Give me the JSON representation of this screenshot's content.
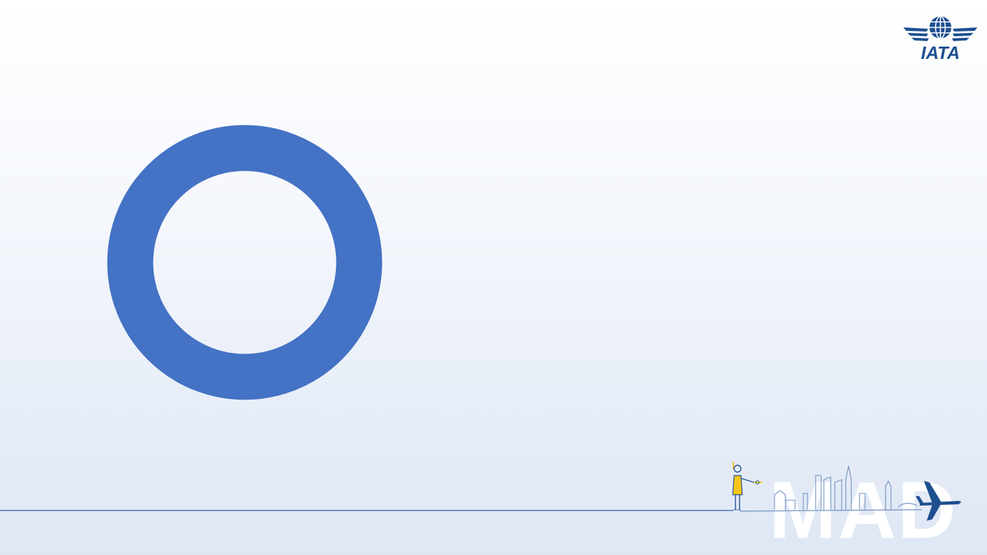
{
  "logo": {
    "text": "IATA"
  },
  "decoration": {
    "city_code": "MAD",
    "ring_color": "#4472c4",
    "brand_color": "#1d4f91",
    "accent_yellow": "#f5c518"
  }
}
